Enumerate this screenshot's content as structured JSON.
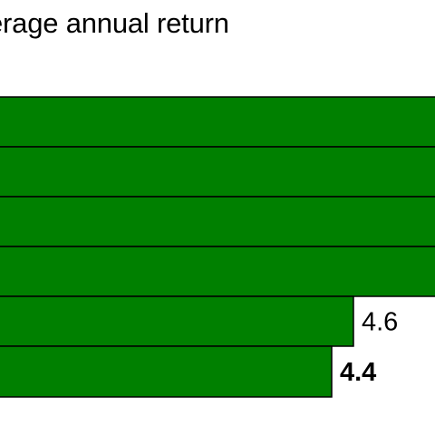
{
  "chart_data": {
    "type": "bar",
    "orientation": "horizontal",
    "title": "erage annual return",
    "bar_color": "#008000",
    "bar_outline_color": "#000000",
    "values": [
      null,
      null,
      null,
      null,
      4.6,
      4.4
    ],
    "value_labels": [
      "",
      "",
      "",
      "",
      "4.6",
      "4.4"
    ],
    "bold_label_index": 5
  }
}
